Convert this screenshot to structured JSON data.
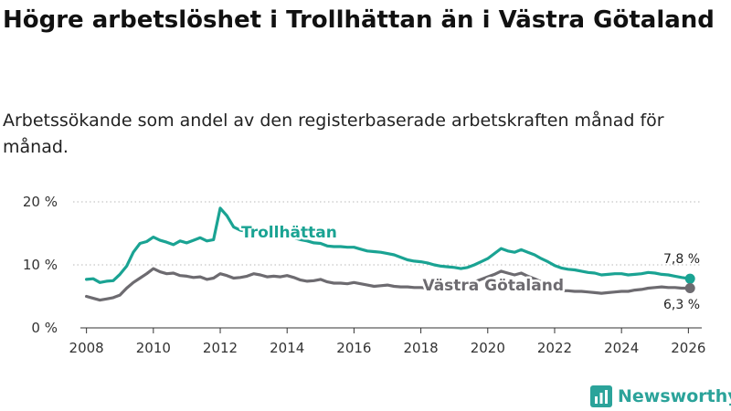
{
  "title": "Högre arbetslöshet i Trollhättan än i Västra Götaland",
  "subtitle": "Arbetssökande som andel av den registerbaserade arbetskraften månad för månad.",
  "brand": {
    "name": "Newsworthy",
    "color": "#2ba39a",
    "icon": "bar-chart-logo-icon"
  },
  "chart_data": {
    "type": "line",
    "xlim": [
      2007.6,
      2026.4
    ],
    "ylim": [
      0,
      20
    ],
    "x_ticks": [
      2008,
      2010,
      2012,
      2014,
      2016,
      2018,
      2020,
      2022,
      2024,
      2026
    ],
    "y_ticks": [
      {
        "value": 0,
        "label": "0 %"
      },
      {
        "value": 10,
        "label": "10 %"
      },
      {
        "value": 20,
        "label": "20 %"
      }
    ],
    "series": [
      {
        "name": "Trollhättan",
        "color": "#1aa393",
        "end_label": "7,8 %",
        "points": [
          [
            2008.0,
            7.7
          ],
          [
            2008.2,
            7.8
          ],
          [
            2008.4,
            7.2
          ],
          [
            2008.6,
            7.4
          ],
          [
            2008.8,
            7.5
          ],
          [
            2009.0,
            8.5
          ],
          [
            2009.2,
            9.8
          ],
          [
            2009.4,
            12.0
          ],
          [
            2009.6,
            13.4
          ],
          [
            2009.8,
            13.7
          ],
          [
            2010.0,
            14.4
          ],
          [
            2010.2,
            13.9
          ],
          [
            2010.4,
            13.6
          ],
          [
            2010.6,
            13.2
          ],
          [
            2010.8,
            13.8
          ],
          [
            2011.0,
            13.5
          ],
          [
            2011.2,
            13.9
          ],
          [
            2011.4,
            14.3
          ],
          [
            2011.6,
            13.8
          ],
          [
            2011.8,
            14.0
          ],
          [
            2012.0,
            19.0
          ],
          [
            2012.2,
            17.8
          ],
          [
            2012.4,
            16.0
          ],
          [
            2012.6,
            15.5
          ],
          [
            2012.8,
            15.3
          ],
          [
            2013.0,
            15.2
          ],
          [
            2013.2,
            15.2
          ],
          [
            2013.4,
            15.0
          ],
          [
            2013.6,
            14.7
          ],
          [
            2013.8,
            14.6
          ],
          [
            2014.0,
            14.5
          ],
          [
            2014.2,
            14.3
          ],
          [
            2014.4,
            14.0
          ],
          [
            2014.6,
            13.8
          ],
          [
            2014.8,
            13.5
          ],
          [
            2015.0,
            13.4
          ],
          [
            2015.2,
            13.0
          ],
          [
            2015.4,
            12.9
          ],
          [
            2015.6,
            12.9
          ],
          [
            2015.8,
            12.8
          ],
          [
            2016.0,
            12.8
          ],
          [
            2016.2,
            12.5
          ],
          [
            2016.4,
            12.2
          ],
          [
            2016.6,
            12.1
          ],
          [
            2016.8,
            12.0
          ],
          [
            2017.0,
            11.8
          ],
          [
            2017.2,
            11.6
          ],
          [
            2017.4,
            11.2
          ],
          [
            2017.6,
            10.8
          ],
          [
            2017.8,
            10.6
          ],
          [
            2018.0,
            10.5
          ],
          [
            2018.2,
            10.3
          ],
          [
            2018.4,
            10.0
          ],
          [
            2018.6,
            9.8
          ],
          [
            2018.8,
            9.7
          ],
          [
            2019.0,
            9.6
          ],
          [
            2019.2,
            9.4
          ],
          [
            2019.4,
            9.6
          ],
          [
            2019.6,
            10.0
          ],
          [
            2019.8,
            10.5
          ],
          [
            2020.0,
            11.0
          ],
          [
            2020.2,
            11.8
          ],
          [
            2020.4,
            12.6
          ],
          [
            2020.6,
            12.2
          ],
          [
            2020.8,
            12.0
          ],
          [
            2021.0,
            12.4
          ],
          [
            2021.2,
            12.0
          ],
          [
            2021.4,
            11.6
          ],
          [
            2021.6,
            11.0
          ],
          [
            2021.8,
            10.5
          ],
          [
            2022.0,
            9.9
          ],
          [
            2022.2,
            9.5
          ],
          [
            2022.4,
            9.3
          ],
          [
            2022.6,
            9.2
          ],
          [
            2022.8,
            9.0
          ],
          [
            2023.0,
            8.8
          ],
          [
            2023.2,
            8.7
          ],
          [
            2023.4,
            8.4
          ],
          [
            2023.6,
            8.5
          ],
          [
            2023.8,
            8.6
          ],
          [
            2024.0,
            8.6
          ],
          [
            2024.2,
            8.4
          ],
          [
            2024.4,
            8.5
          ],
          [
            2024.6,
            8.6
          ],
          [
            2024.8,
            8.8
          ],
          [
            2025.0,
            8.7
          ],
          [
            2025.2,
            8.5
          ],
          [
            2025.4,
            8.4
          ],
          [
            2025.6,
            8.2
          ],
          [
            2025.8,
            8.0
          ],
          [
            2026.05,
            7.8
          ]
        ]
      },
      {
        "name": "Västra Götaland",
        "color": "#6d6b70",
        "end_label": "6,3 %",
        "points": [
          [
            2008.0,
            5.0
          ],
          [
            2008.2,
            4.7
          ],
          [
            2008.4,
            4.4
          ],
          [
            2008.6,
            4.6
          ],
          [
            2008.8,
            4.8
          ],
          [
            2009.0,
            5.2
          ],
          [
            2009.2,
            6.3
          ],
          [
            2009.4,
            7.2
          ],
          [
            2009.6,
            7.9
          ],
          [
            2009.8,
            8.6
          ],
          [
            2010.0,
            9.4
          ],
          [
            2010.2,
            8.9
          ],
          [
            2010.4,
            8.6
          ],
          [
            2010.6,
            8.7
          ],
          [
            2010.8,
            8.3
          ],
          [
            2011.0,
            8.2
          ],
          [
            2011.2,
            8.0
          ],
          [
            2011.4,
            8.1
          ],
          [
            2011.6,
            7.7
          ],
          [
            2011.8,
            7.9
          ],
          [
            2012.0,
            8.6
          ],
          [
            2012.2,
            8.3
          ],
          [
            2012.4,
            7.9
          ],
          [
            2012.6,
            8.0
          ],
          [
            2012.8,
            8.2
          ],
          [
            2013.0,
            8.6
          ],
          [
            2013.2,
            8.4
          ],
          [
            2013.4,
            8.1
          ],
          [
            2013.6,
            8.2
          ],
          [
            2013.8,
            8.1
          ],
          [
            2014.0,
            8.3
          ],
          [
            2014.2,
            8.0
          ],
          [
            2014.4,
            7.6
          ],
          [
            2014.6,
            7.4
          ],
          [
            2014.8,
            7.5
          ],
          [
            2015.0,
            7.7
          ],
          [
            2015.2,
            7.3
          ],
          [
            2015.4,
            7.1
          ],
          [
            2015.6,
            7.1
          ],
          [
            2015.8,
            7.0
          ],
          [
            2016.0,
            7.2
          ],
          [
            2016.2,
            7.0
          ],
          [
            2016.4,
            6.8
          ],
          [
            2016.6,
            6.6
          ],
          [
            2016.8,
            6.7
          ],
          [
            2017.0,
            6.8
          ],
          [
            2017.2,
            6.6
          ],
          [
            2017.4,
            6.5
          ],
          [
            2017.6,
            6.5
          ],
          [
            2017.8,
            6.4
          ],
          [
            2018.0,
            6.4
          ],
          [
            2018.2,
            6.3
          ],
          [
            2018.4,
            6.2
          ],
          [
            2018.6,
            6.3
          ],
          [
            2018.8,
            6.4
          ],
          [
            2019.0,
            6.6
          ],
          [
            2019.2,
            6.7
          ],
          [
            2019.4,
            6.9
          ],
          [
            2019.6,
            7.3
          ],
          [
            2019.8,
            7.7
          ],
          [
            2020.0,
            8.1
          ],
          [
            2020.2,
            8.5
          ],
          [
            2020.4,
            9.0
          ],
          [
            2020.6,
            8.7
          ],
          [
            2020.8,
            8.4
          ],
          [
            2021.0,
            8.7
          ],
          [
            2021.2,
            8.2
          ],
          [
            2021.4,
            7.8
          ],
          [
            2021.6,
            7.3
          ],
          [
            2021.8,
            6.8
          ],
          [
            2022.0,
            6.2
          ],
          [
            2022.2,
            5.9
          ],
          [
            2022.4,
            5.9
          ],
          [
            2022.6,
            5.8
          ],
          [
            2022.8,
            5.8
          ],
          [
            2023.0,
            5.7
          ],
          [
            2023.2,
            5.6
          ],
          [
            2023.4,
            5.5
          ],
          [
            2023.6,
            5.6
          ],
          [
            2023.8,
            5.7
          ],
          [
            2024.0,
            5.8
          ],
          [
            2024.2,
            5.8
          ],
          [
            2024.4,
            6.0
          ],
          [
            2024.6,
            6.1
          ],
          [
            2024.8,
            6.3
          ],
          [
            2025.0,
            6.4
          ],
          [
            2025.2,
            6.5
          ],
          [
            2025.4,
            6.4
          ],
          [
            2025.6,
            6.4
          ],
          [
            2025.8,
            6.3
          ],
          [
            2026.05,
            6.3
          ]
        ]
      }
    ]
  }
}
